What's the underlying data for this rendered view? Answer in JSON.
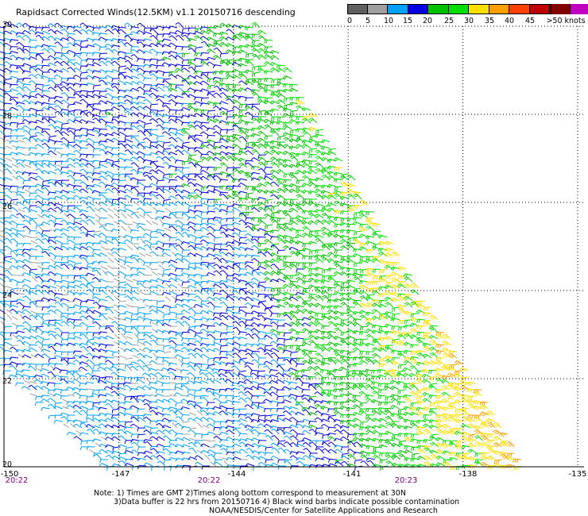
{
  "title": "Rapidsact Corrected Winds(12.5KM) v1.1 20150716 descending",
  "colorbar": {
    "colors": [
      "#606060",
      "#a0a0a0",
      "#00a0ff",
      "#0000e0",
      "#00c000",
      "#00e000",
      "#ffe000",
      "#ffa000",
      "#ff4000",
      "#c00000",
      "#800000",
      "#c000c0",
      "#8000ff"
    ],
    "labels": [
      "0",
      "5",
      "10",
      "15",
      "20",
      "25",
      "30",
      "35",
      "40",
      "45",
      ">50 knots"
    ]
  },
  "latitude_labels": [
    "30",
    "28",
    "26",
    "24",
    "22",
    "20"
  ],
  "longitude_labels": [
    "-150",
    "-147",
    "-144",
    "-141",
    "-138",
    "-135"
  ],
  "time_labels": [
    "20:22",
    "20:22",
    "20:23"
  ],
  "notes": [
    "Note: 1) Times are GMT 2)Times along bottom correspond to measurement at 30N",
    "3)Data buffer is 22 hrs from 20150716 4) Black wind barbs indicate possible contamination",
    "NOAA/NESDIS/Center for Satellite Applications and Research"
  ],
  "map_data": {
    "lat_range": [
      20,
      30
    ],
    "lon_range": [
      -150,
      -135
    ],
    "grid": true,
    "swath_edge_lon_at_30N": -143.2,
    "swath_edge_lon_at_20N": -136.3,
    "speed_units": "knots"
  }
}
